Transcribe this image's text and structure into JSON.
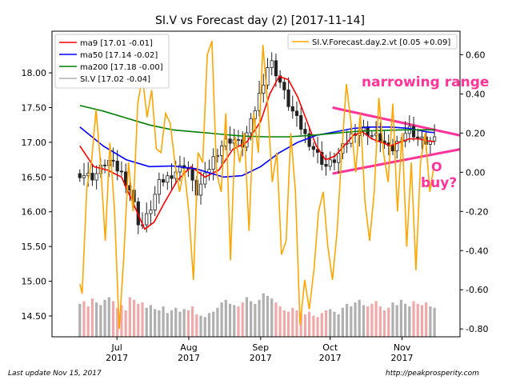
{
  "chart_data": {
    "type": "line",
    "title": "SI.V vs Forecast day (2)  [2017-11-14]",
    "x_ticks": [
      {
        "month": "Jul",
        "year": "2017",
        "day": 16
      },
      {
        "month": "Aug",
        "year": "2017",
        "day": 47
      },
      {
        "month": "Sep",
        "year": "2017",
        "day": 78
      },
      {
        "month": "Oct",
        "year": "2017",
        "day": 108
      },
      {
        "month": "Nov",
        "year": "2017",
        "day": 139
      }
    ],
    "xlim": [
      -12,
      164
    ],
    "left_axis": {
      "ylim": [
        14.2,
        18.6
      ],
      "ticks": [
        "14.50",
        "15.00",
        "15.50",
        "16.00",
        "16.50",
        "17.00",
        "17.50",
        "18.00"
      ]
    },
    "right_axis": {
      "ylim": [
        -0.84,
        0.72
      ],
      "ticks": [
        "-0.80",
        "-0.60",
        "-0.40",
        "-0.20",
        "0.00",
        "0.20",
        "0.40",
        "0.60"
      ]
    },
    "legend_left": [
      {
        "label": "ma9 [17.01 -0.01]",
        "color": "#ff0000"
      },
      {
        "label": "ma50 [17.14 -0.02]",
        "color": "#0000ff"
      },
      {
        "label": "ma200 [17.18 -0.00]",
        "color": "#008000"
      },
      {
        "label": "SI.V [17.02 -0.04]",
        "color": "#888888"
      }
    ],
    "legend_right": [
      {
        "label": "SI.V.Forecast.day.2.vt [0.05 +0.09]",
        "color": "#ffa500"
      }
    ],
    "series": [
      {
        "name": "SI.V",
        "kind": "ohlc",
        "color": "#333333",
        "key_closes": [
          [
            0,
            16.55
          ],
          [
            6,
            16.5
          ],
          [
            12,
            16.75
          ],
          [
            18,
            16.55
          ],
          [
            22,
            16.3
          ],
          [
            26,
            15.75
          ],
          [
            30,
            16.0
          ],
          [
            34,
            16.4
          ],
          [
            40,
            16.55
          ],
          [
            46,
            16.7
          ],
          [
            50,
            16.25
          ],
          [
            54,
            16.5
          ],
          [
            58,
            16.8
          ],
          [
            62,
            17.0
          ],
          [
            66,
            17.05
          ],
          [
            70,
            16.95
          ],
          [
            74,
            17.3
          ],
          [
            78,
            17.75
          ],
          [
            82,
            18.2
          ],
          [
            86,
            17.9
          ],
          [
            90,
            17.55
          ],
          [
            94,
            17.3
          ],
          [
            98,
            17.05
          ],
          [
            102,
            16.85
          ],
          [
            106,
            16.65
          ],
          [
            110,
            16.75
          ],
          [
            114,
            16.95
          ],
          [
            118,
            17.15
          ],
          [
            122,
            17.2
          ],
          [
            126,
            17.1
          ],
          [
            130,
            17.05
          ],
          [
            134,
            16.85
          ],
          [
            138,
            17.05
          ],
          [
            142,
            17.2
          ],
          [
            146,
            17.05
          ],
          [
            150,
            17.0
          ],
          [
            153,
            17.02
          ]
        ]
      },
      {
        "name": "ma9",
        "color": "#ff0000",
        "points": [
          [
            0,
            16.95
          ],
          [
            6,
            16.65
          ],
          [
            12,
            16.6
          ],
          [
            18,
            16.5
          ],
          [
            24,
            16.05
          ],
          [
            28,
            15.75
          ],
          [
            32,
            15.85
          ],
          [
            36,
            16.1
          ],
          [
            42,
            16.45
          ],
          [
            48,
            16.65
          ],
          [
            54,
            16.5
          ],
          [
            60,
            16.6
          ],
          [
            66,
            16.9
          ],
          [
            72,
            17.0
          ],
          [
            78,
            17.3
          ],
          [
            82,
            17.7
          ],
          [
            86,
            17.95
          ],
          [
            90,
            17.9
          ],
          [
            94,
            17.65
          ],
          [
            98,
            17.3
          ],
          [
            102,
            16.95
          ],
          [
            106,
            16.75
          ],
          [
            110,
            16.8
          ],
          [
            114,
            16.95
          ],
          [
            118,
            17.1
          ],
          [
            122,
            17.15
          ],
          [
            126,
            17.05
          ],
          [
            130,
            17.0
          ],
          [
            134,
            16.95
          ],
          [
            138,
            17.0
          ],
          [
            142,
            17.05
          ],
          [
            146,
            17.05
          ],
          [
            150,
            17.02
          ],
          [
            153,
            17.01
          ]
        ]
      },
      {
        "name": "ma50",
        "color": "#0000ff",
        "points": [
          [
            0,
            17.22
          ],
          [
            10,
            16.95
          ],
          [
            20,
            16.75
          ],
          [
            30,
            16.65
          ],
          [
            40,
            16.66
          ],
          [
            50,
            16.62
          ],
          [
            56,
            16.56
          ],
          [
            62,
            16.5
          ],
          [
            70,
            16.52
          ],
          [
            78,
            16.65
          ],
          [
            86,
            16.85
          ],
          [
            94,
            17.0
          ],
          [
            102,
            17.1
          ],
          [
            110,
            17.15
          ],
          [
            118,
            17.2
          ],
          [
            126,
            17.22
          ],
          [
            134,
            17.22
          ],
          [
            142,
            17.2
          ],
          [
            150,
            17.15
          ],
          [
            153,
            17.14
          ]
        ]
      },
      {
        "name": "ma200",
        "color": "#008000",
        "points": [
          [
            0,
            17.53
          ],
          [
            10,
            17.45
          ],
          [
            20,
            17.35
          ],
          [
            30,
            17.25
          ],
          [
            40,
            17.18
          ],
          [
            50,
            17.15
          ],
          [
            60,
            17.12
          ],
          [
            70,
            17.09
          ],
          [
            80,
            17.08
          ],
          [
            90,
            17.08
          ],
          [
            100,
            17.1
          ],
          [
            110,
            17.13
          ],
          [
            120,
            17.16
          ],
          [
            130,
            17.17
          ],
          [
            140,
            17.18
          ],
          [
            153,
            17.18
          ]
        ]
      },
      {
        "name": "SI.V.Forecast.day.2.vt",
        "color": "#ffa500",
        "axis": "right",
        "points": [
          [
            0,
            -0.57
          ],
          [
            1,
            -0.62
          ],
          [
            3,
            -0.08
          ],
          [
            5,
            0.05
          ],
          [
            7,
            0.32
          ],
          [
            9,
            0.03
          ],
          [
            11,
            -0.35
          ],
          [
            13,
            0.15
          ],
          [
            15,
            -0.2
          ],
          [
            17,
            -0.8
          ],
          [
            19,
            -0.43
          ],
          [
            21,
            0.05
          ],
          [
            23,
            -0.2
          ],
          [
            25,
            0.35
          ],
          [
            27,
            0.49
          ],
          [
            29,
            0.28
          ],
          [
            31,
            0.42
          ],
          [
            33,
            0.12
          ],
          [
            35,
            0.1
          ],
          [
            37,
            0.3
          ],
          [
            39,
            0.25
          ],
          [
            41,
            0.05
          ],
          [
            43,
            -0.1
          ],
          [
            45,
            0.02
          ],
          [
            47,
            -0.2
          ],
          [
            49,
            -0.55
          ],
          [
            51,
            0.1
          ],
          [
            53,
            0.05
          ],
          [
            55,
            0.6
          ],
          [
            57,
            0.67
          ],
          [
            59,
            0.0
          ],
          [
            61,
            -0.1
          ],
          [
            63,
            0.3
          ],
          [
            65,
            -0.45
          ],
          [
            67,
            0.18
          ],
          [
            69,
            0.05
          ],
          [
            71,
            0.2
          ],
          [
            73,
            -0.3
          ],
          [
            75,
            0.3
          ],
          [
            77,
            0.1
          ],
          [
            79,
            0.65
          ],
          [
            81,
            0.35
          ],
          [
            83,
            -0.05
          ],
          [
            85,
            0.1
          ],
          [
            87,
            -0.42
          ],
          [
            89,
            -0.35
          ],
          [
            91,
            0.2
          ],
          [
            93,
            -0.1
          ],
          [
            95,
            -0.78
          ],
          [
            97,
            -0.55
          ],
          [
            99,
            -0.7
          ],
          [
            101,
            -0.5
          ],
          [
            103,
            -0.2
          ],
          [
            105,
            -0.1
          ],
          [
            107,
            -0.38
          ],
          [
            109,
            -0.55
          ],
          [
            111,
            -0.3
          ],
          [
            113,
            0.1
          ],
          [
            115,
            0.45
          ],
          [
            117,
            0.25
          ],
          [
            119,
            0.0
          ],
          [
            121,
            0.3
          ],
          [
            123,
            -0.15
          ],
          [
            125,
            -0.35
          ],
          [
            127,
            -0.1
          ],
          [
            129,
            0.38
          ],
          [
            131,
            0.1
          ],
          [
            133,
            -0.05
          ],
          [
            135,
            0.35
          ],
          [
            137,
            -0.2
          ],
          [
            139,
            0.2
          ],
          [
            141,
            -0.38
          ],
          [
            143,
            0.05
          ],
          [
            145,
            -0.5
          ],
          [
            147,
            0.05
          ],
          [
            149,
            0.2
          ],
          [
            151,
            -0.1
          ],
          [
            153,
            0.05
          ]
        ]
      }
    ],
    "volume_bars": [
      2.5,
      2.7,
      2.3,
      2.9,
      2.6,
      2.4,
      2.8,
      3.0,
      2.7,
      2.2,
      2.4,
      2.0,
      3.0,
      2.8,
      2.5,
      2.6,
      2.2,
      2.4,
      2.1,
      2.0,
      2.3,
      1.8,
      2.0,
      2.2,
      1.9,
      2.1,
      2.0,
      2.3,
      1.7,
      1.6,
      1.5,
      1.8,
      1.9,
      2.2,
      2.6,
      2.8,
      2.5,
      2.4,
      2.3,
      2.6,
      3.0,
      2.7,
      2.5,
      2.8,
      3.3,
      3.1,
      2.9,
      2.6,
      2.3,
      2.0,
      1.9,
      2.2,
      2.0,
      1.8,
      1.7,
      1.9,
      1.6,
      1.5,
      1.8,
      2.0,
      2.1,
      1.9,
      1.7,
      2.2,
      2.5,
      2.3,
      2.6,
      2.8,
      2.4,
      2.3,
      2.5,
      2.7,
      2.3,
      2.0,
      2.2,
      2.6,
      2.4,
      2.8,
      2.5,
      2.3,
      2.7,
      2.5,
      2.4,
      2.6,
      2.3,
      2.2
    ],
    "annotations": [
      {
        "text": "narrowing range",
        "color": "#ff3399"
      },
      {
        "text": "O",
        "color": "#ff3399"
      },
      {
        "text": "buy?",
        "color": "#ff3399"
      }
    ],
    "trend_lines": [
      {
        "color": "#ff3399",
        "from": [
          109,
          17.5
        ],
        "to": [
          164,
          17.1
        ]
      },
      {
        "color": "#ff3399",
        "from": [
          109,
          16.55
        ],
        "to": [
          164,
          16.9
        ]
      }
    ]
  },
  "footer": {
    "left": "Last update Nov 15, 2017",
    "right": "http://peakprosperity.com"
  }
}
